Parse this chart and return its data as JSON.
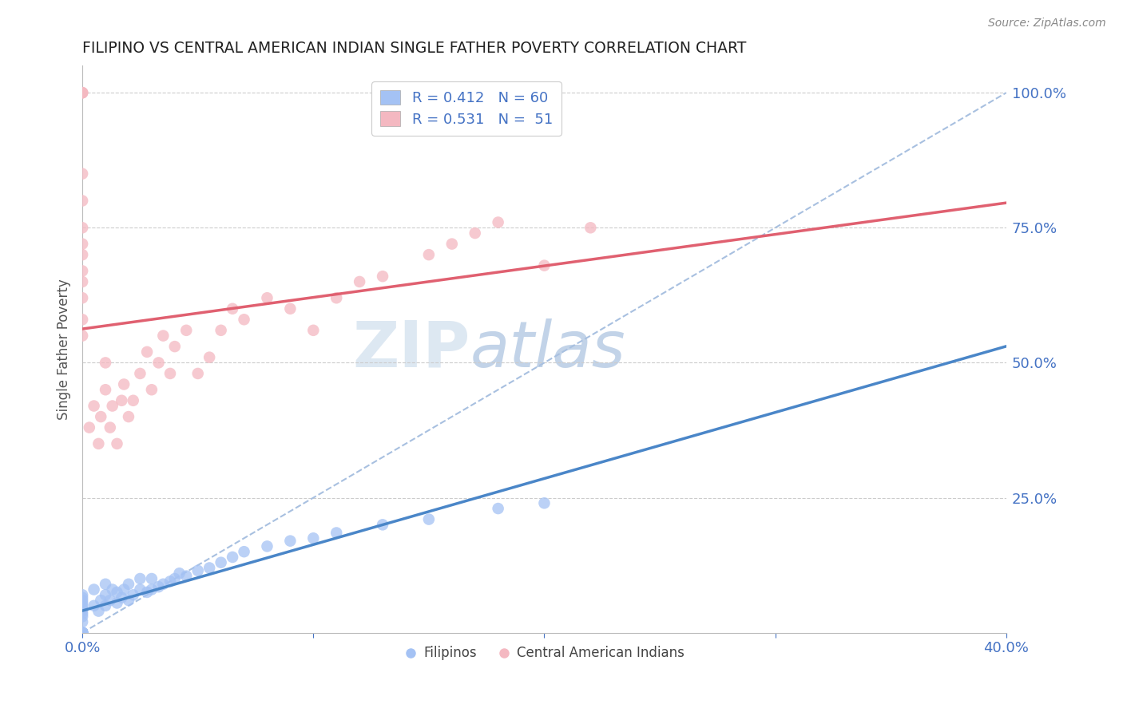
{
  "title": "FILIPINO VS CENTRAL AMERICAN INDIAN SINGLE FATHER POVERTY CORRELATION CHART",
  "source": "Source: ZipAtlas.com",
  "ylabel": "Single Father Poverty",
  "xlim": [
    0.0,
    0.4
  ],
  "ylim": [
    0.0,
    1.05
  ],
  "blue_R": 0.412,
  "blue_N": 60,
  "pink_R": 0.531,
  "pink_N": 51,
  "blue_color": "#a4c2f4",
  "pink_color": "#f4b8c1",
  "blue_line_color": "#4a86c8",
  "pink_line_color": "#e06070",
  "ref_line_color": "#a8c0e0",
  "legend_label_blue": "Filipinos",
  "legend_label_pink": "Central American Indians",
  "watermark_zip": "ZIP",
  "watermark_atlas": "atlas",
  "blue_x": [
    0.0,
    0.0,
    0.0,
    0.0,
    0.0,
    0.0,
    0.0,
    0.0,
    0.0,
    0.0,
    0.0,
    0.0,
    0.0,
    0.0,
    0.0,
    0.0,
    0.0,
    0.0,
    0.0,
    0.0,
    0.005,
    0.005,
    0.007,
    0.008,
    0.01,
    0.01,
    0.01,
    0.012,
    0.013,
    0.015,
    0.015,
    0.017,
    0.018,
    0.02,
    0.02,
    0.022,
    0.025,
    0.025,
    0.028,
    0.03,
    0.03,
    0.033,
    0.035,
    0.038,
    0.04,
    0.042,
    0.045,
    0.05,
    0.055,
    0.06,
    0.065,
    0.07,
    0.08,
    0.09,
    0.1,
    0.11,
    0.13,
    0.15,
    0.18,
    0.2
  ],
  "blue_y": [
    0.0,
    0.0,
    0.0,
    0.0,
    0.0,
    0.0,
    0.0,
    0.0,
    0.0,
    0.0,
    0.02,
    0.03,
    0.035,
    0.04,
    0.045,
    0.05,
    0.055,
    0.06,
    0.065,
    0.07,
    0.05,
    0.08,
    0.04,
    0.06,
    0.05,
    0.07,
    0.09,
    0.06,
    0.08,
    0.055,
    0.075,
    0.065,
    0.08,
    0.06,
    0.09,
    0.07,
    0.08,
    0.1,
    0.075,
    0.08,
    0.1,
    0.085,
    0.09,
    0.095,
    0.1,
    0.11,
    0.105,
    0.115,
    0.12,
    0.13,
    0.14,
    0.15,
    0.16,
    0.17,
    0.175,
    0.185,
    0.2,
    0.21,
    0.23,
    0.24
  ],
  "pink_x": [
    0.0,
    0.0,
    0.0,
    0.0,
    0.0,
    0.0,
    0.0,
    0.0,
    0.0,
    0.0,
    0.0,
    0.0,
    0.0,
    0.003,
    0.005,
    0.007,
    0.008,
    0.01,
    0.01,
    0.012,
    0.013,
    0.015,
    0.017,
    0.018,
    0.02,
    0.022,
    0.025,
    0.028,
    0.03,
    0.033,
    0.035,
    0.038,
    0.04,
    0.045,
    0.05,
    0.055,
    0.06,
    0.065,
    0.07,
    0.08,
    0.09,
    0.1,
    0.11,
    0.12,
    0.13,
    0.15,
    0.16,
    0.17,
    0.18,
    0.2,
    0.22
  ],
  "pink_y": [
    0.55,
    0.58,
    0.62,
    0.65,
    0.67,
    0.7,
    0.72,
    0.75,
    0.8,
    0.85,
    1.0,
    1.0,
    1.0,
    0.38,
    0.42,
    0.35,
    0.4,
    0.45,
    0.5,
    0.38,
    0.42,
    0.35,
    0.43,
    0.46,
    0.4,
    0.43,
    0.48,
    0.52,
    0.45,
    0.5,
    0.55,
    0.48,
    0.53,
    0.56,
    0.48,
    0.51,
    0.56,
    0.6,
    0.58,
    0.62,
    0.6,
    0.56,
    0.62,
    0.65,
    0.66,
    0.7,
    0.72,
    0.74,
    0.76,
    0.68,
    0.75
  ]
}
